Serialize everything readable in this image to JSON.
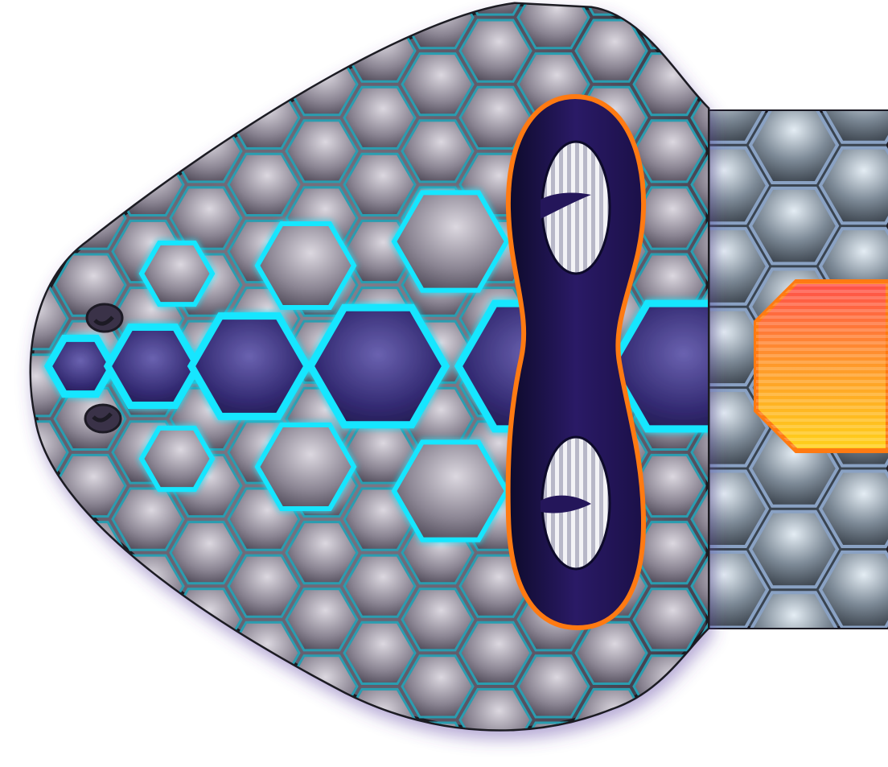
{
  "scene": {
    "kind": "snake-head-sprite",
    "facing": "left",
    "eyes_count": 2,
    "nostrils_count": 2
  },
  "colors": {
    "background": "#ffffff",
    "head_outline": "#1c1a24",
    "head_scale_light": "#d2cdd5",
    "head_scale_dark": "#3a3542",
    "center_stripe_scale": "#2a2260",
    "glow": "#19e6ff",
    "eye_band": "#24165a",
    "eye_band_outline": "#ff7a12",
    "eye_white": "#f3f3f6",
    "eye_stripe": "#b8b8c8",
    "pupil": "#24165a",
    "body_scale": "#55606c",
    "body_scale_light": "#d9e3ec",
    "tongue_top": "#ff4e4a",
    "tongue_bottom": "#ffd21a",
    "tongue_outline": "#ff7a12"
  },
  "icons": [
    "snake-head-icon",
    "eye-icon",
    "nostril-icon",
    "tongue-icon"
  ]
}
